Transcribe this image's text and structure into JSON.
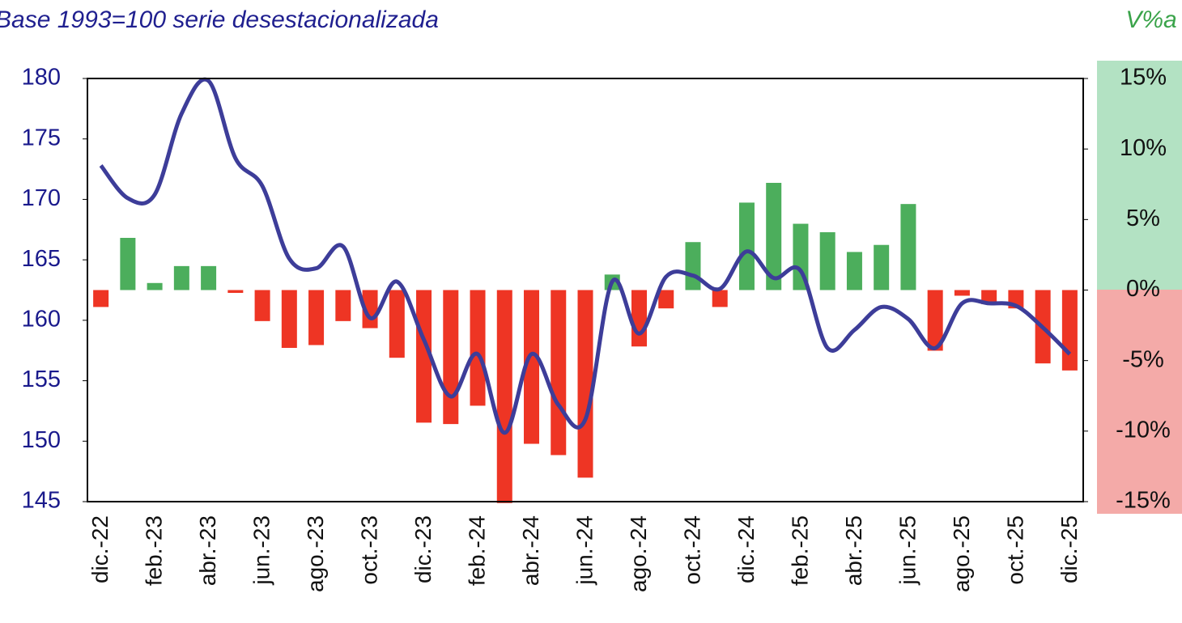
{
  "chart_data": {
    "type": "bar_line",
    "title": "Base 1993=100 serie desestacionalizada",
    "y2_title": "V%a",
    "categories": [
      "dic.-22",
      null,
      "feb.-23",
      null,
      "abr.-23",
      null,
      "jun.-23",
      null,
      "ago.-23",
      null,
      "oct.-23",
      null,
      "dic.-23",
      null,
      "feb.-24",
      null,
      "abr.-24",
      null,
      "jun.-24",
      null,
      "ago.-24",
      null,
      "oct.-24",
      null,
      "dic.-24",
      null,
      "feb.-25",
      null,
      "abr.-25",
      null,
      "jun.-25",
      null,
      "ago.-25",
      null,
      "oct.-25",
      null,
      "dic.-25"
    ],
    "series": [
      {
        "type": "bar",
        "axis": "y2",
        "positive_color": "#4cae5c",
        "negative_color": "#ee3524",
        "values": [
          -1.2,
          3.7,
          0.5,
          1.7,
          1.7,
          -0.2,
          -2.2,
          -4.1,
          -3.9,
          -2.2,
          -2.7,
          -4.8,
          -9.4,
          -9.5,
          -8.2,
          -15.1,
          -10.9,
          -11.7,
          -13.3,
          1.1,
          -4.0,
          -1.3,
          3.4,
          -1.2,
          6.2,
          7.6,
          4.7,
          4.1,
          2.7,
          3.2,
          6.1,
          -4.3,
          -0.4,
          -1.0,
          -1.3,
          -5.2,
          -5.7
        ]
      },
      {
        "type": "line",
        "axis": "y",
        "color": "#3d3d99",
        "values": [
          172.8,
          170.1,
          170.4,
          177.1,
          179.8,
          173.4,
          171.1,
          165.1,
          164.3,
          166.1,
          160.2,
          163.2,
          158.4,
          153.7,
          157.2,
          150.7,
          157.2,
          153.0,
          151.8,
          163.2,
          158.9,
          163.6,
          163.7,
          162.6,
          165.7,
          163.5,
          164.1,
          157.7,
          159.2,
          161.1,
          160.1,
          157.7,
          161.4,
          161.4,
          161.2,
          159.4,
          157.2
        ]
      }
    ],
    "ylim": [
      145,
      180
    ],
    "yticks": [
      145,
      150,
      155,
      160,
      165,
      170,
      175,
      180
    ],
    "y2lim": [
      -15,
      15
    ],
    "y2ticks": [
      {
        "value": -15,
        "label": "-15%"
      },
      {
        "value": -10,
        "label": "-10%"
      },
      {
        "value": -5,
        "label": "-5%"
      },
      {
        "value": 0,
        "label": "0%"
      },
      {
        "value": 5,
        "label": "5%"
      },
      {
        "value": 10,
        "label": "10%"
      },
      {
        "value": 15,
        "label": "15%"
      }
    ]
  }
}
